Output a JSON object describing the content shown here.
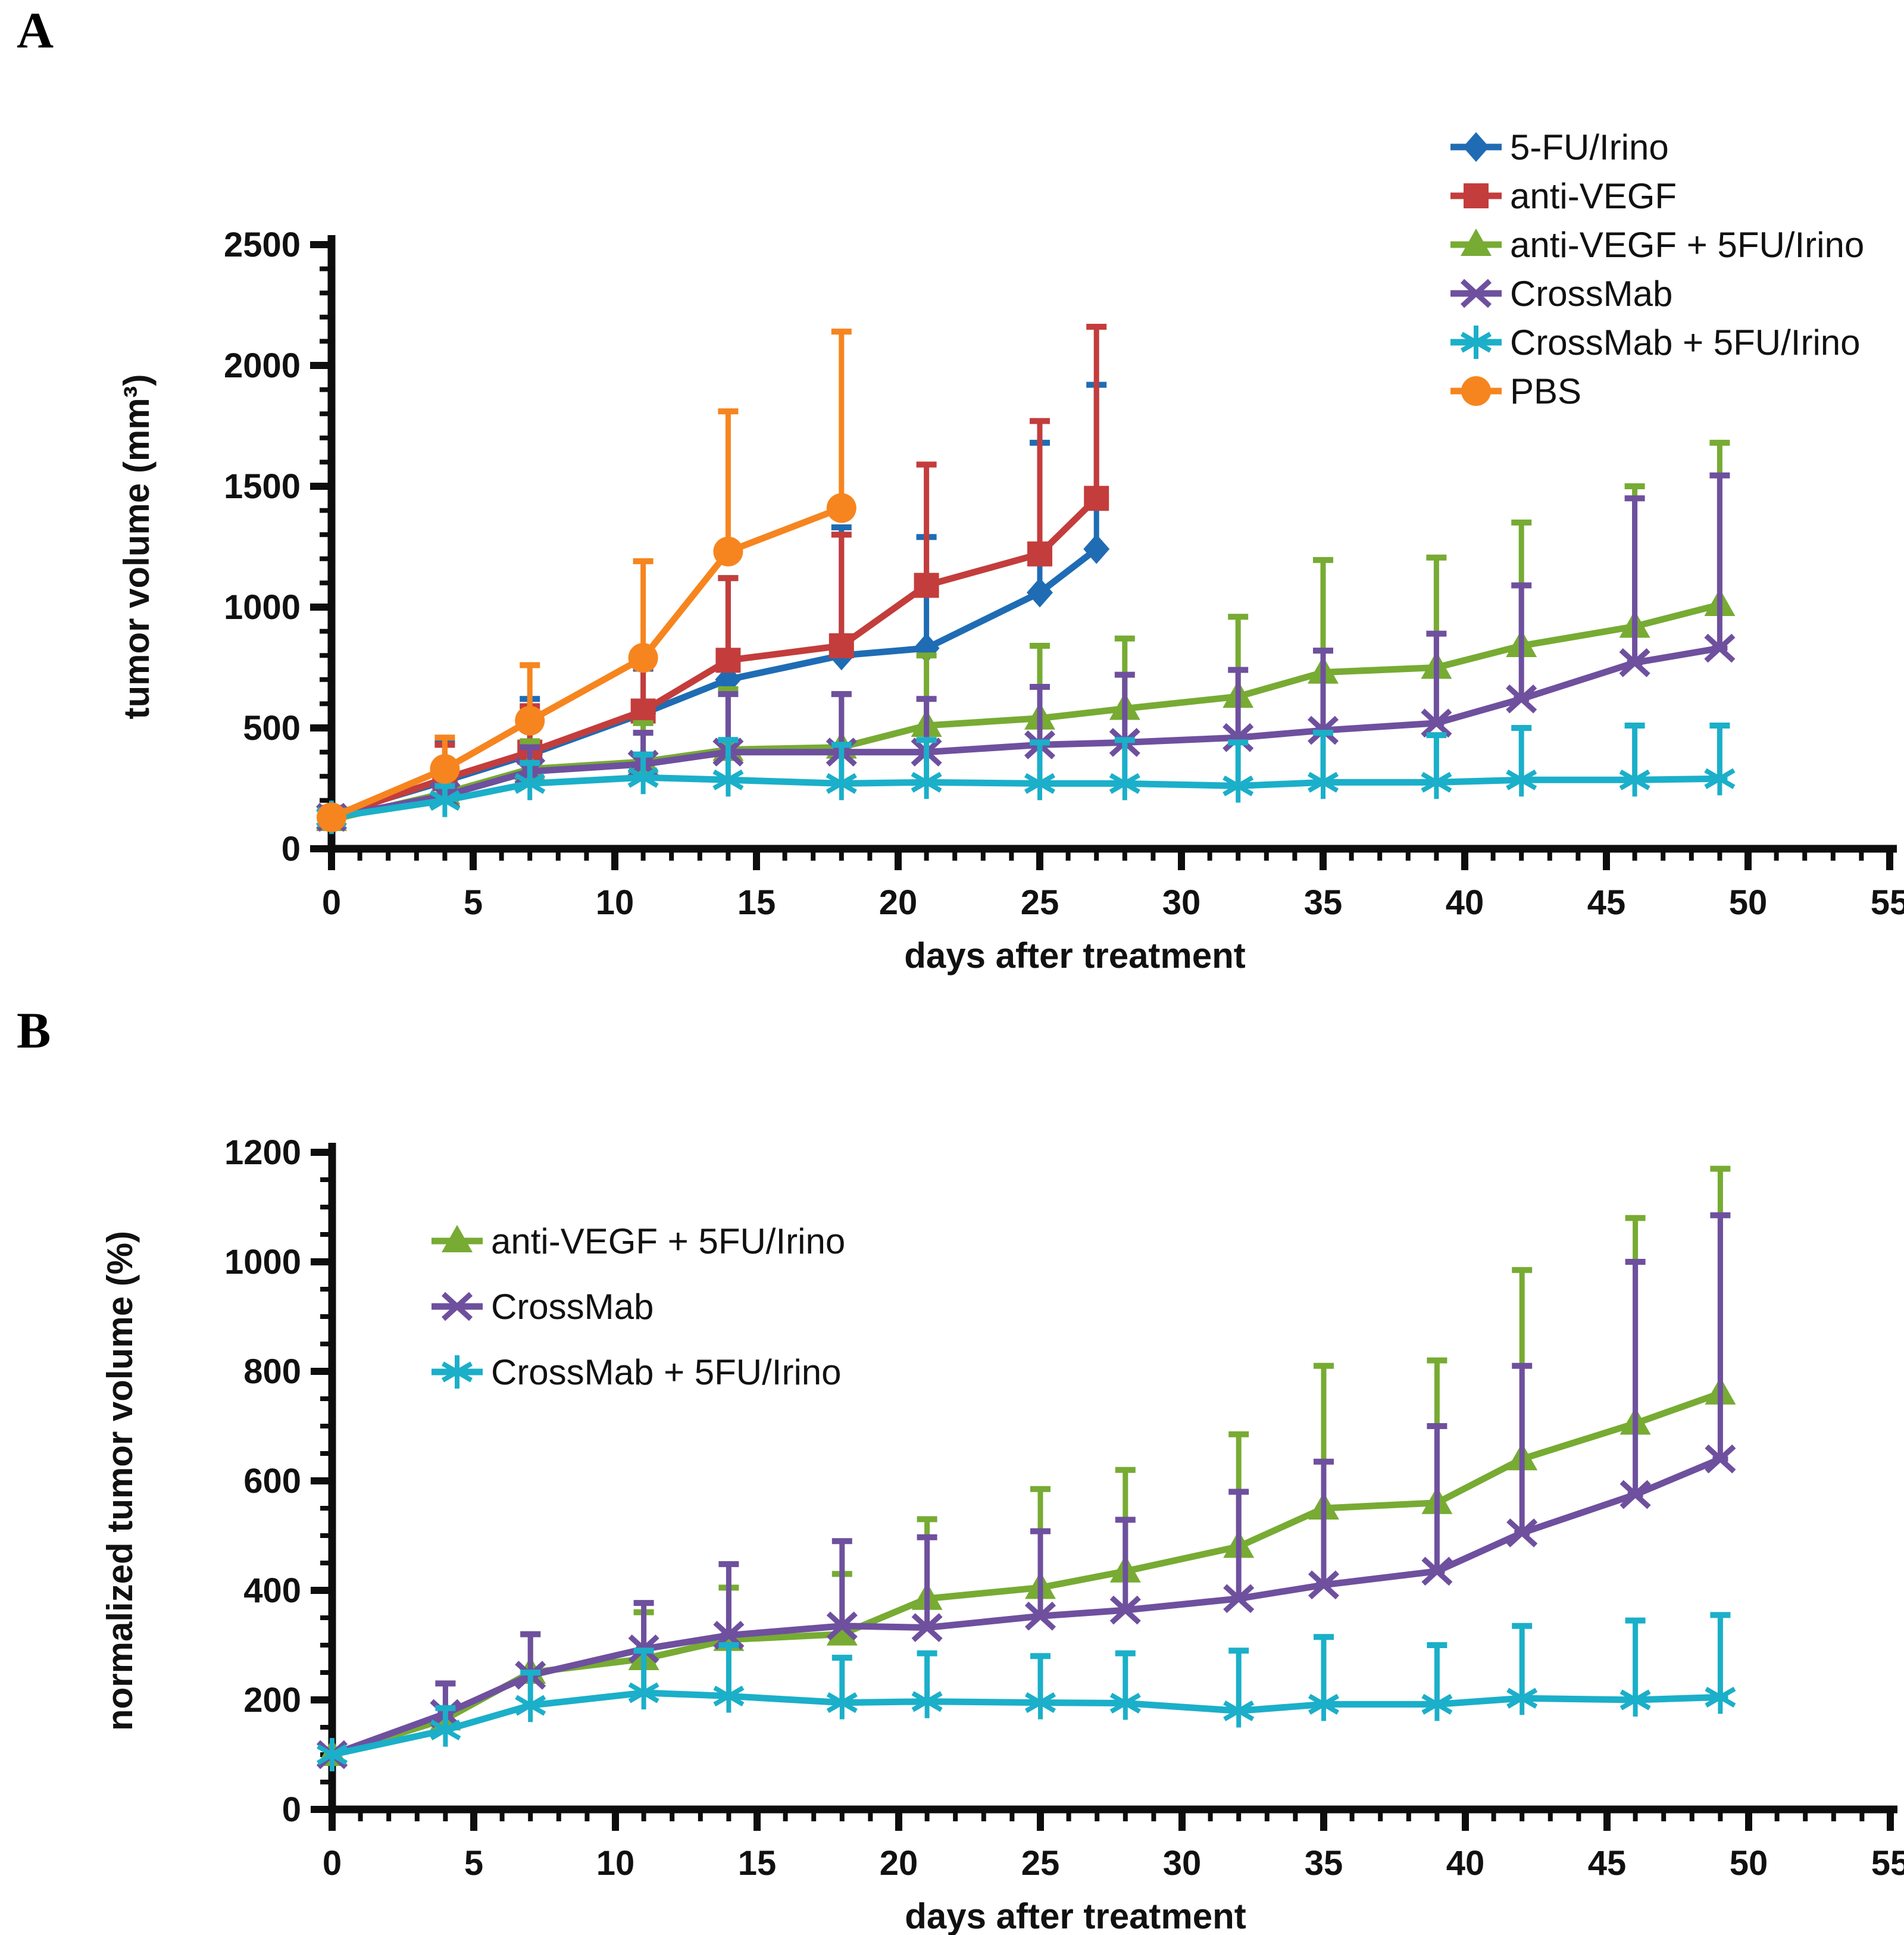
{
  "figure": {
    "panel_a_letter": "A",
    "panel_b_letter": "B"
  },
  "chart_data": [
    {
      "type": "line",
      "panel": "A",
      "title": "",
      "xlabel": "days after treatment",
      "ylabel": "tumor volume (mm³)",
      "xlim": [
        0,
        55
      ],
      "ylim": [
        0,
        2500
      ],
      "xtick_step": 5,
      "xminor_step": 1,
      "ytick_step": 500,
      "yminor_step": 100,
      "grid": false,
      "legend_position": "outside-right-top",
      "error_bars": "upper-sd",
      "series": [
        {
          "name": "5-FU/Irino",
          "color": "#1F6CB4",
          "marker": "diamond",
          "x": [
            0,
            4,
            7,
            11,
            14,
            18,
            21,
            25,
            27
          ],
          "y": [
            140,
            280,
            390,
            560,
            700,
            800,
            830,
            1060,
            1240
          ],
          "err_top": [
            165,
            440,
            620,
            745,
            1120,
            1330,
            1290,
            1680,
            1920
          ]
        },
        {
          "name": "anti-VEGF",
          "color": "#C33D3C",
          "marker": "square",
          "x": [
            0,
            4,
            7,
            11,
            14,
            18,
            21,
            25,
            27
          ],
          "y": [
            130,
            290,
            400,
            570,
            780,
            840,
            1090,
            1220,
            1450
          ],
          "err_top": [
            150,
            430,
            590,
            750,
            1120,
            1300,
            1590,
            1770,
            2160
          ]
        },
        {
          "name": "anti-VEGF + 5FU/Irino",
          "color": "#77AB33",
          "marker": "triangle",
          "x": [
            0,
            4,
            7,
            11,
            14,
            18,
            21,
            25,
            28,
            32,
            35,
            39,
            42,
            46,
            49
          ],
          "y": [
            120,
            230,
            330,
            360,
            410,
            420,
            510,
            540,
            580,
            630,
            730,
            750,
            840,
            920,
            1010
          ],
          "err_top": [
            140,
            330,
            445,
            520,
            660,
            640,
            800,
            840,
            870,
            960,
            1195,
            1205,
            1350,
            1500,
            1680
          ]
        },
        {
          "name": "CrossMab",
          "color": "#6E509E",
          "marker": "x",
          "x": [
            0,
            4,
            7,
            11,
            14,
            18,
            21,
            25,
            28,
            32,
            35,
            39,
            42,
            46,
            49
          ],
          "y": [
            130,
            220,
            320,
            350,
            400,
            400,
            400,
            430,
            440,
            460,
            490,
            520,
            620,
            770,
            830
          ],
          "err_top": [
            150,
            300,
            420,
            480,
            640,
            640,
            620,
            670,
            720,
            740,
            820,
            890,
            1090,
            1450,
            1545
          ]
        },
        {
          "name": "CrossMab + 5FU/Irino",
          "color": "#1BAFC9",
          "marker": "asterisk",
          "x": [
            0,
            4,
            7,
            11,
            14,
            18,
            21,
            25,
            28,
            32,
            35,
            39,
            42,
            46,
            49
          ],
          "y": [
            130,
            200,
            270,
            295,
            285,
            270,
            275,
            270,
            270,
            260,
            275,
            275,
            285,
            285,
            290
          ],
          "err_top": [
            150,
            260,
            355,
            390,
            450,
            430,
            450,
            440,
            450,
            440,
            480,
            470,
            500,
            510,
            510
          ]
        },
        {
          "name": "PBS",
          "color": "#F6851F",
          "marker": "circle",
          "x": [
            0,
            4,
            7,
            11,
            14,
            18
          ],
          "y": [
            130,
            330,
            530,
            790,
            1230,
            1410
          ],
          "err_top": [
            150,
            460,
            760,
            1190,
            1810,
            2140
          ]
        }
      ]
    },
    {
      "type": "line",
      "panel": "B",
      "title": "",
      "xlabel": "days after treatment",
      "ylabel": "normalized tumor volume (%)",
      "xlim": [
        0,
        55
      ],
      "ylim": [
        0,
        1200
      ],
      "xtick_step": 5,
      "xminor_step": 1,
      "ytick_step": 200,
      "yminor_step": 50,
      "grid": false,
      "legend_position": "inside-left-top",
      "error_bars": "upper-sd",
      "series": [
        {
          "name": "anti-VEGF + 5FU/Irino",
          "color": "#77AB33",
          "marker": "triangle",
          "x": [
            0,
            4,
            7,
            11,
            14,
            18,
            21,
            25,
            28,
            32,
            35,
            39,
            42,
            46,
            49
          ],
          "y": [
            100,
            165,
            250,
            275,
            310,
            320,
            385,
            405,
            435,
            480,
            550,
            560,
            640,
            705,
            760
          ],
          "err_top": [
            110,
            230,
            320,
            360,
            405,
            430,
            530,
            585,
            620,
            685,
            810,
            820,
            985,
            1080,
            1170
          ]
        },
        {
          "name": "CrossMab",
          "color": "#6E509E",
          "marker": "x",
          "x": [
            0,
            4,
            7,
            11,
            14,
            18,
            21,
            25,
            28,
            32,
            35,
            39,
            42,
            46,
            49
          ],
          "y": [
            100,
            175,
            245,
            293,
            318,
            335,
            332,
            353,
            364,
            385,
            410,
            435,
            505,
            575,
            640
          ],
          "err_top": [
            110,
            230,
            320,
            377,
            448,
            490,
            497,
            508,
            529,
            580,
            635,
            700,
            810,
            1000,
            1085
          ]
        },
        {
          "name": "CrossMab + 5FU/Irino",
          "color": "#1BAFC9",
          "marker": "asterisk",
          "x": [
            0,
            4,
            7,
            11,
            14,
            18,
            21,
            25,
            28,
            32,
            35,
            39,
            42,
            46,
            49
          ],
          "y": [
            100,
            145,
            190,
            213,
            207,
            195,
            197,
            195,
            194,
            180,
            192,
            192,
            203,
            200,
            205
          ],
          "err_top": [
            110,
            185,
            250,
            290,
            300,
            277,
            285,
            280,
            285,
            290,
            315,
            300,
            335,
            345,
            355
          ]
        }
      ]
    }
  ]
}
